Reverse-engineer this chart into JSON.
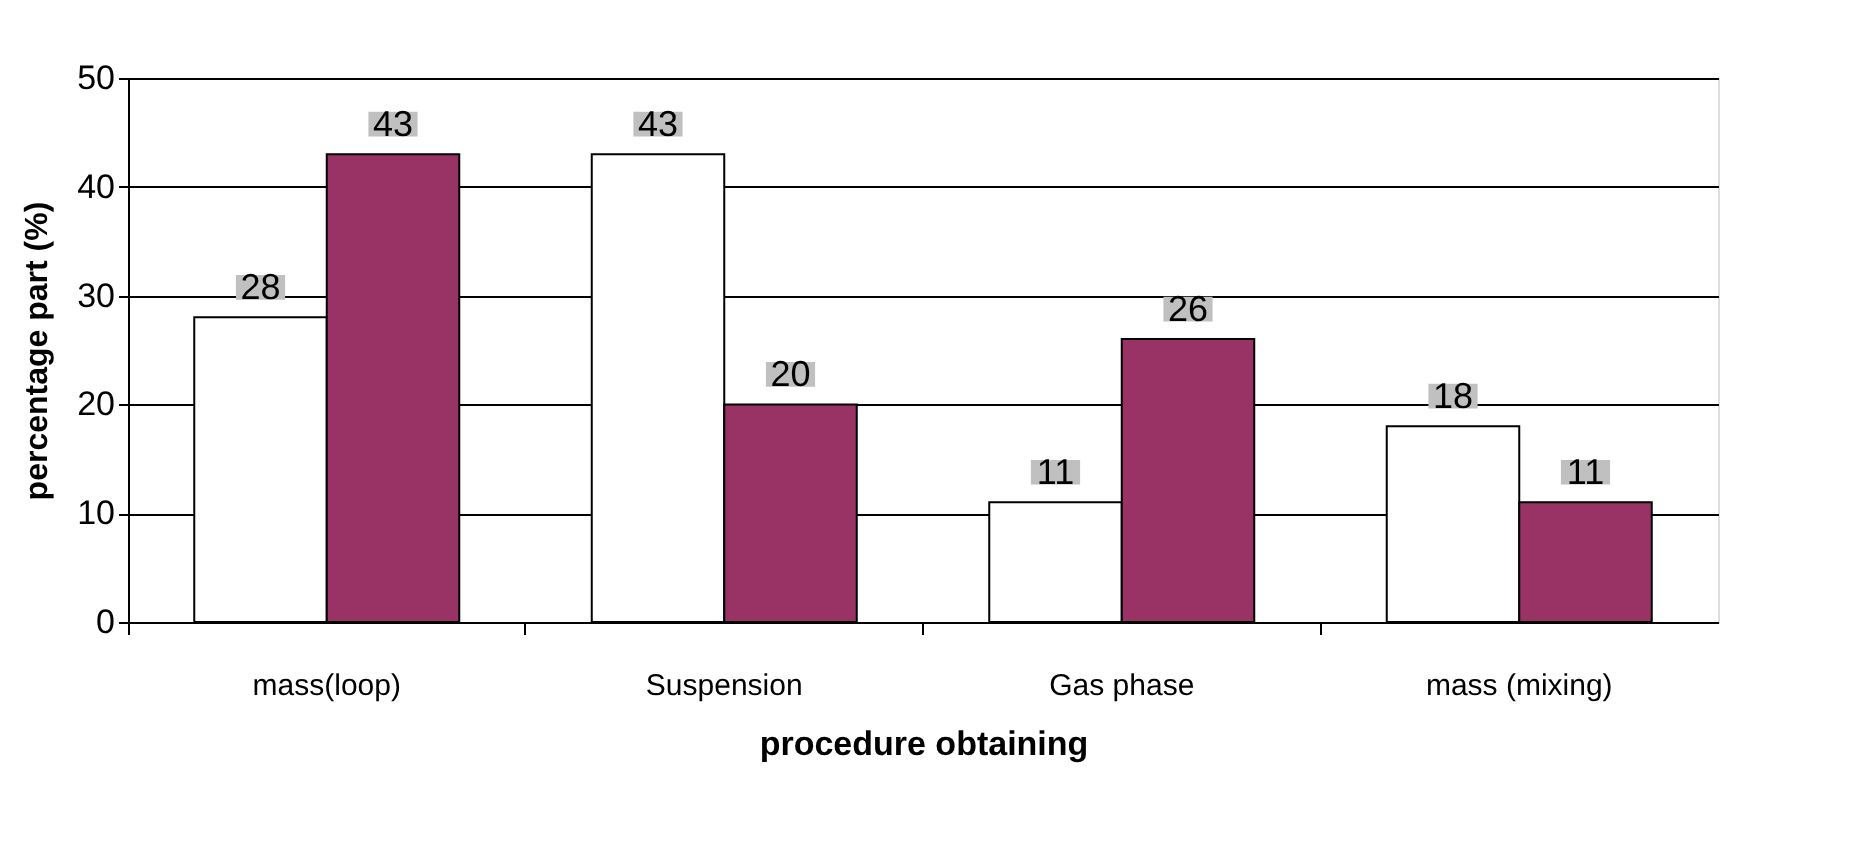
{
  "chart_data": {
    "type": "bar",
    "xlabel": "procedure obtaining",
    "ylabel": "percentage part (%)",
    "categories": [
      "mass(loop)",
      "Suspension",
      "Gas phase",
      "mass (mixing)"
    ],
    "series": [
      {
        "color": "#ffffff",
        "values": [
          28,
          43,
          11,
          18
        ]
      },
      {
        "color": "#993366",
        "values": [
          43,
          20,
          26,
          11
        ]
      }
    ],
    "ylim": [
      0,
      50
    ],
    "yticks": [
      0,
      10,
      20,
      30,
      40,
      50
    ],
    "grid": "y",
    "data_labels": true,
    "legend": false
  }
}
